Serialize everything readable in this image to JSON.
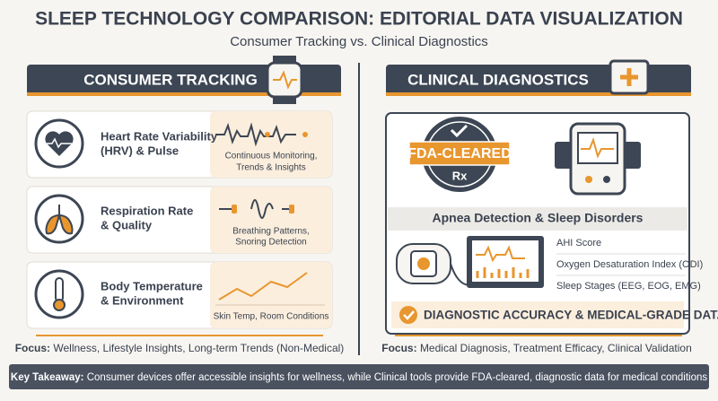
{
  "title": "SLEEP TECHNOLOGY COMPARISON: EDITORIAL DATA VISUALIZATION",
  "subtitle": "Consumer Tracking vs. Clinical Diagnostics",
  "consumer": {
    "header": "CONSUMER TRACKING",
    "items": [
      {
        "title_lines": [
          "Heart Rate Variability",
          "(HRV) & Pulse"
        ],
        "detail_lines": [
          "Continuous Monitoring,",
          "Trends & Insights"
        ]
      },
      {
        "title_lines": [
          "Respiration Rate",
          "& Quality"
        ],
        "detail_lines": [
          "Breathing Patterns,",
          "Snoring Detection"
        ]
      },
      {
        "title_lines": [
          "Body Temperature",
          "& Environment"
        ],
        "detail_lines": [
          "Skin Temp, Room Conditions"
        ]
      }
    ],
    "focus_label": "Focus:",
    "focus_text": "Wellness, Lifestyle Insights, Long-term Trends (Non-Medical)"
  },
  "clinical": {
    "header": "CLINICAL DIAGNOSTICS",
    "badge": "FDA-CLEARED",
    "badge_symbol": "Rx",
    "section_title": "Apnea Detection & Sleep Disorders",
    "metrics": [
      "AHI Score",
      "Oxygen Desaturation Index (ODI)",
      "Sleep Stages (EEG, EOG, EMG)"
    ],
    "banner": "DIAGNOSTIC ACCURACY & MEDICAL-GRADE DATA",
    "focus_label": "Focus:",
    "focus_text": "Medical Diagnosis, Treatment Efficacy, Clinical Validation"
  },
  "takeaway": {
    "label": "Key Takeaway:",
    "text": "Consumer devices offer accessible insights for wellness, while Clinical tools provide FDA-cleared, diagnostic data for medical conditions"
  }
}
